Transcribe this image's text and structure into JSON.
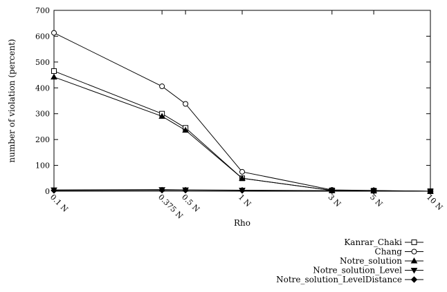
{
  "chart_data": {
    "type": "line",
    "title": "",
    "xlabel": "Rho",
    "ylabel": "number of violation (percent)",
    "x": [
      0.1,
      0.375,
      0.5,
      1,
      3,
      5,
      10
    ],
    "x_tick_labels": [
      "0.1 N",
      "0.375 N",
      "0.5 N",
      "1 N",
      "3 N",
      "5 N",
      "10 N"
    ],
    "x_scale": "log",
    "ylim": [
      0,
      700
    ],
    "y_ticks": [
      0,
      100,
      200,
      300,
      400,
      500,
      600,
      700
    ],
    "grid": false,
    "legend_position": "below-right",
    "series": [
      {
        "name": "Kanrar_Chaki",
        "marker": "square-open",
        "values": [
          465,
          300,
          245,
          50,
          3,
          2,
          0
        ]
      },
      {
        "name": "Chang",
        "marker": "circle-open",
        "values": [
          613,
          406,
          338,
          75,
          5,
          3,
          0
        ]
      },
      {
        "name": "Notre_solution",
        "marker": "triangle-up-filled",
        "values": [
          442,
          290,
          236,
          50,
          3,
          2,
          0
        ]
      },
      {
        "name": "Notre_solution_Level",
        "marker": "triangle-down-filled",
        "values": [
          5,
          6,
          5,
          4,
          2,
          1,
          0
        ]
      },
      {
        "name": "Notre_solution_LevelDistance",
        "marker": "diamond-filled",
        "values": [
          3,
          4,
          4,
          3,
          2,
          1,
          0
        ]
      }
    ]
  }
}
